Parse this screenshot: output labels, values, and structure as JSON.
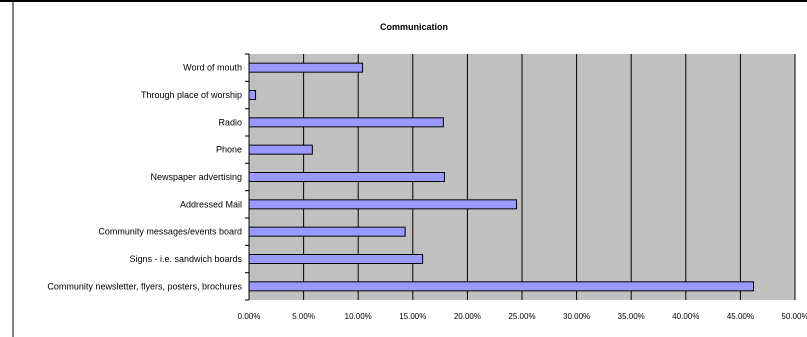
{
  "chart_data": {
    "type": "bar",
    "orientation": "horizontal",
    "title": "Communication",
    "categories": [
      "Word of mouth",
      "Through place of worship",
      "Radio",
      "Phone",
      "Newspaper advertising",
      "Addressed Mail",
      "Community messages/events board",
      "Signs - i.e. sandwich boards",
      "Community newsletter, flyers, posters, brochures"
    ],
    "values": [
      10.4,
      0.6,
      17.8,
      5.8,
      17.9,
      24.5,
      14.3,
      15.9,
      46.2
    ],
    "xlim": [
      0,
      50
    ],
    "xticks": [
      "0.00%",
      "5.00%",
      "10.00%",
      "15.00%",
      "20.00%",
      "25.00%",
      "30.00%",
      "35.00%",
      "40.00%",
      "45.00%",
      "50.00%"
    ],
    "grid": "vertical",
    "legend": "none",
    "colors": {
      "bar_fill": "#9999ff",
      "bar_stroke": "#000000",
      "plot_bg": "#c0c0c0"
    }
  }
}
